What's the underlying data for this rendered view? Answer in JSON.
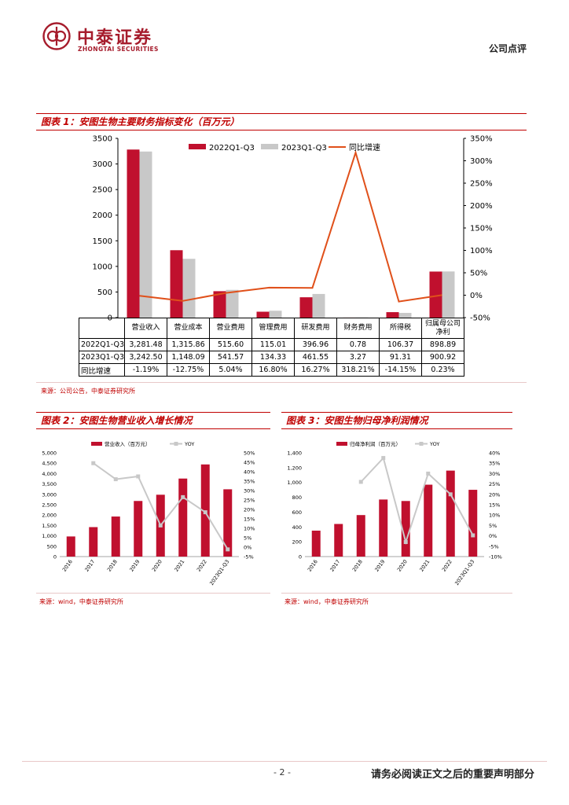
{
  "header": {
    "company_cn": "中泰证券",
    "company_en": "ZHONGTAI SECURITIES",
    "doc_type": "公司点评"
  },
  "figure1": {
    "title": "图表 1：安图生物主要财务指标变化（百万元）",
    "legend": [
      "2022Q1-Q3",
      "2023Q1-Q3",
      "同比增速"
    ],
    "source": "来源：公司公告，中泰证券研究所",
    "table": {
      "columns": [
        "营业收入",
        "营业成本",
        "营业费用",
        "管理费用",
        "研发费用",
        "财务费用",
        "所得税",
        "归属母公司净利"
      ],
      "rows": [
        {
          "label": "2022Q1-Q3",
          "cells": [
            "3,281.48",
            "1,315.86",
            "515.60",
            "115.01",
            "396.96",
            "0.78",
            "106.37",
            "898.89"
          ]
        },
        {
          "label": "2023Q1-Q3",
          "cells": [
            "3,242.50",
            "1,148.09",
            "541.57",
            "134.33",
            "461.55",
            "3.27",
            "91.31",
            "900.92"
          ]
        },
        {
          "label": "同比增速",
          "cells": [
            "-1.19%",
            "-12.75%",
            "5.04%",
            "16.80%",
            "16.27%",
            "318.21%",
            "-14.15%",
            "0.23%"
          ]
        }
      ]
    }
  },
  "figure2": {
    "title": "图表 2：安图生物营业收入增长情况",
    "source": "来源：wind，中泰证券研究所",
    "legend": [
      "营业收入（百万元）",
      "YOY"
    ]
  },
  "figure3": {
    "title": "图表 3：安图生物归母净利润情况",
    "source": "来源：wind，中泰证券研究所",
    "legend": [
      "归母净利润（百万元）",
      "YOY"
    ]
  },
  "footer": {
    "page": "- 2 -",
    "disclaimer": "请务必阅读正文之后的重要声明部分"
  },
  "colors": {
    "red": "#c00000",
    "bar1": "#c0102e",
    "bar2": "#c8c8c8",
    "line": "#e0501a",
    "yoy": "#c8c8c8"
  },
  "chart_data": [
    {
      "type": "bar",
      "title": "安图生物主要财务指标变化（百万元）",
      "categories": [
        "营业收入",
        "营业成本",
        "营业费用",
        "管理费用",
        "研发费用",
        "财务费用",
        "所得税",
        "归属母公司净利"
      ],
      "series": [
        {
          "name": "2022Q1-Q3",
          "values": [
            3281.48,
            1315.86,
            515.6,
            115.01,
            396.96,
            0.78,
            106.37,
            898.89
          ]
        },
        {
          "name": "2023Q1-Q3",
          "values": [
            3242.5,
            1148.09,
            541.57,
            134.33,
            461.55,
            3.27,
            91.31,
            900.92
          ]
        },
        {
          "name": "同比增速",
          "axis": "right",
          "values": [
            -1.19,
            -12.75,
            5.04,
            16.8,
            16.27,
            318.21,
            -14.15,
            0.23
          ]
        }
      ],
      "ylim": [
        0,
        3500
      ],
      "yticks": [
        0,
        500,
        1000,
        1500,
        2000,
        2500,
        3000,
        3500
      ],
      "y2lim": [
        -50,
        350
      ],
      "y2ticks": [
        "-50%",
        "0%",
        "50%",
        "100%",
        "150%",
        "200%",
        "250%",
        "300%",
        "350%"
      ]
    },
    {
      "type": "bar",
      "title": "安图生物营业收入增长情况",
      "categories": [
        "2016",
        "2017",
        "2018",
        "2019",
        "2020",
        "2021",
        "2022",
        "2023Q1-Q3"
      ],
      "series": [
        {
          "name": "营业收入（百万元）",
          "values": [
            970,
            1420,
            1930,
            2680,
            2980,
            3760,
            4440,
            3242.5
          ]
        },
        {
          "name": "YOY",
          "axis": "right",
          "values": [
            null,
            44.5,
            36,
            37.5,
            11.5,
            26.5,
            18.5,
            -1.19
          ]
        }
      ],
      "ylim": [
        0,
        5000
      ],
      "yticks": [
        "0",
        "500",
        "1,000",
        "1,500",
        "2,000",
        "2,500",
        "3,000",
        "3,500",
        "4,000",
        "4,500",
        "5,000"
      ],
      "y2lim": [
        -5,
        50
      ],
      "y2ticks": [
        "-5%",
        "0%",
        "5%",
        "10%",
        "15%",
        "20%",
        "25%",
        "30%",
        "35%",
        "40%",
        "45%",
        "50%"
      ]
    },
    {
      "type": "bar",
      "title": "安图生物归母净利润情况",
      "categories": [
        "2016",
        "2017",
        "2018",
        "2019",
        "2020",
        "2021",
        "2022",
        "2023Q1-Q3"
      ],
      "series": [
        {
          "name": "归母净利润（百万元）",
          "values": [
            350,
            440,
            560,
            770,
            750,
            970,
            1160,
            900.92
          ]
        },
        {
          "name": "YOY",
          "axis": "right",
          "values": [
            null,
            null,
            26,
            37.5,
            -3,
            30,
            20,
            0.23
          ]
        }
      ],
      "ylim": [
        0,
        1400
      ],
      "yticks": [
        "0",
        "200",
        "400",
        "600",
        "800",
        "1,000",
        "1,200",
        "1,400"
      ],
      "y2lim": [
        -10,
        40
      ],
      "y2ticks": [
        "-10%",
        "-5%",
        "0%",
        "5%",
        "10%",
        "15%",
        "20%",
        "25%",
        "30%",
        "35%",
        "40%"
      ]
    }
  ]
}
